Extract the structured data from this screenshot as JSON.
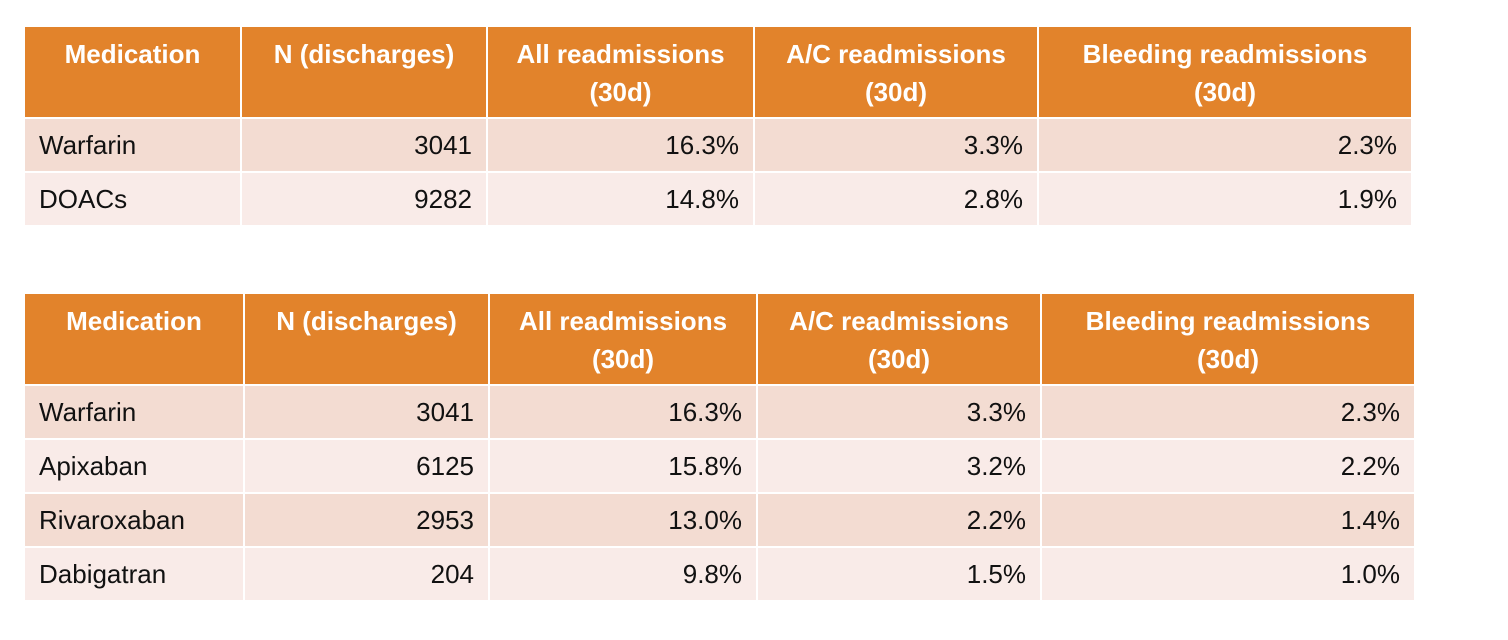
{
  "tables": [
    {
      "header": [
        [
          "Medication"
        ],
        [
          "N (discharges)"
        ],
        [
          "All readmissions",
          "(30d)"
        ],
        [
          "A/C readmissions",
          "(30d)"
        ],
        [
          "Bleeding readmissions",
          "(30d)"
        ]
      ],
      "rows": [
        [
          "Warfarin",
          "3041",
          "16.3%",
          "3.3%",
          "2.3%"
        ],
        [
          "DOACs",
          "9282",
          "14.8%",
          "2.8%",
          "1.9%"
        ]
      ]
    },
    {
      "header": [
        [
          "Medication"
        ],
        [
          "N (discharges)"
        ],
        [
          "All readmissions",
          "(30d)"
        ],
        [
          "A/C readmissions",
          "(30d)"
        ],
        [
          "Bleeding readmissions",
          "(30d)"
        ]
      ],
      "rows": [
        [
          "Warfarin",
          "3041",
          "16.3%",
          "3.3%",
          "2.3%"
        ],
        [
          "Apixaban",
          "6125",
          "15.8%",
          "3.2%",
          "2.2%"
        ],
        [
          "Rivaroxaban",
          "2953",
          "13.0%",
          "2.2%",
          "1.4%"
        ],
        [
          "Dabigatran",
          "204",
          "9.8%",
          "1.5%",
          "1.0%"
        ]
      ]
    }
  ]
}
